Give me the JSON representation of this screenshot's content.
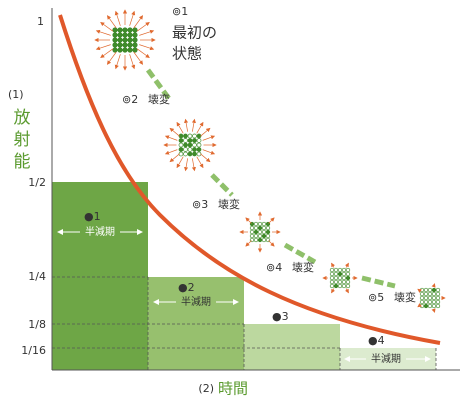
{
  "y_axis": {
    "number": "(1)",
    "label": [
      "放",
      "射",
      "能"
    ],
    "ticks": [
      "1",
      "1/2",
      "1/4",
      "1/8",
      "1/16"
    ]
  },
  "x_axis": {
    "number": "(2)",
    "label": "時間"
  },
  "half_lives": [
    {
      "number": "●1",
      "label": "半減期"
    },
    {
      "number": "●2",
      "label": "半減期"
    },
    {
      "number": "●3"
    },
    {
      "number": "●4",
      "label": "半減期"
    }
  ],
  "states": [
    {
      "number": "⊚1",
      "label": [
        "最初の",
        "状態"
      ]
    },
    {
      "number": "⊚2",
      "label": "壊変"
    },
    {
      "number": "⊚3",
      "label": "壊変"
    },
    {
      "number": "⊚4",
      "label": "壊変"
    },
    {
      "number": "⊚5",
      "label": "壊変"
    }
  ]
}
